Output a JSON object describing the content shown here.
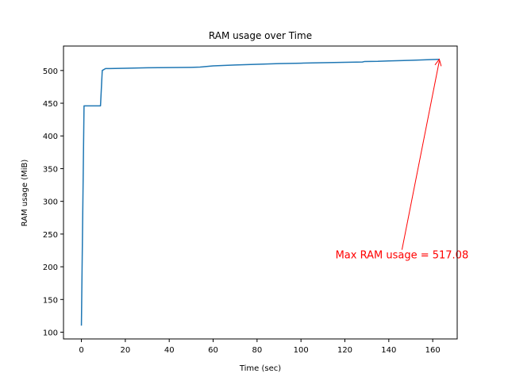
{
  "chart_data": {
    "type": "line",
    "title": "RAM usage over Time",
    "xlabel": "Time (sec)",
    "ylabel": "RAM usage (MiB)",
    "xlim": [
      -8.15,
      171.15
    ],
    "ylim": [
      89.7,
      537.4
    ],
    "xticks": [
      0,
      20,
      40,
      60,
      80,
      100,
      120,
      140,
      160
    ],
    "yticks": [
      100,
      150,
      200,
      250,
      300,
      350,
      400,
      450,
      500
    ],
    "grid": false,
    "series": [
      {
        "color": "#1f77b4",
        "x": [
          0,
          1.2,
          2,
          4,
          6,
          8,
          8.7,
          9.5,
          11,
          13,
          20,
          30,
          40,
          50,
          54,
          56,
          58,
          60,
          70,
          80,
          90,
          100,
          110,
          120,
          128,
          129,
          135,
          140,
          150,
          160,
          163
        ],
        "y": [
          110,
          446,
          446,
          446,
          446,
          446,
          446,
          500,
          503,
          503,
          503.5,
          504.2,
          504.5,
          504.8,
          505.2,
          505.8,
          506.5,
          507,
          508.5,
          509.5,
          510.5,
          511.2,
          512,
          512.6,
          513,
          513.8,
          514,
          514.6,
          515.6,
          516.8,
          517.08
        ]
      }
    ],
    "annotation": {
      "text": "Max RAM usage = 517.08",
      "x": 163,
      "y": 517.08,
      "text_x": 146,
      "text_y": 220,
      "color": "#ff0000"
    }
  }
}
